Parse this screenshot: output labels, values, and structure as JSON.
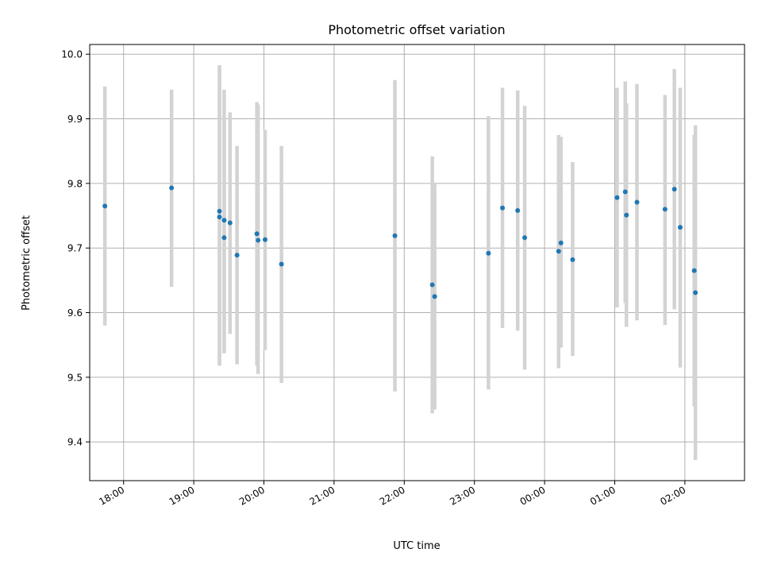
{
  "chart_data": {
    "type": "scatter",
    "title": "Photometric offset variation",
    "xlabel": "UTC time",
    "ylabel": "Photometric offset",
    "grid": true,
    "y_ticks": [
      "9.4",
      "9.5",
      "9.6",
      "9.7",
      "9.8",
      "9.9",
      "10.0"
    ],
    "x_tick_labels": [
      "18:00",
      "19:00",
      "20:00",
      "21:00",
      "22:00",
      "23:00",
      "00:00",
      "01:00",
      "02:00"
    ],
    "x_ticks": [
      "18:00",
      "19:00",
      "20:00",
      "21:00",
      "22:00",
      "23:00",
      "00:00",
      "01:00",
      "02:00"
    ],
    "x_range": [
      "17:31",
      "02:51"
    ],
    "ylim": [
      9.34,
      10.015
    ],
    "colors": {
      "point": "#1f77b4",
      "errorbar": "#d3d3d3",
      "grid": "#b0b0b0"
    },
    "points": [
      {
        "x": "17:44",
        "y": 9.765,
        "ylo": 9.58,
        "yhi": 9.95
      },
      {
        "x": "18:41",
        "y": 9.793,
        "ylo": 9.64,
        "yhi": 9.945
      },
      {
        "x": "19:22",
        "y": 9.757,
        "ylo": 9.518,
        "yhi": 9.983
      },
      {
        "x": "19:22",
        "y": 9.748,
        "ylo": 9.52,
        "yhi": 9.978
      },
      {
        "x": "19:26",
        "y": 9.743,
        "ylo": 9.537,
        "yhi": 9.945
      },
      {
        "x": "19:26",
        "y": 9.716,
        "ylo": 9.538,
        "yhi": 9.9
      },
      {
        "x": "19:31",
        "y": 9.739,
        "ylo": 9.567,
        "yhi": 9.91
      },
      {
        "x": "19:37",
        "y": 9.689,
        "ylo": 9.52,
        "yhi": 9.858
      },
      {
        "x": "19:54",
        "y": 9.722,
        "ylo": 9.518,
        "yhi": 9.926
      },
      {
        "x": "19:55",
        "y": 9.712,
        "ylo": 9.505,
        "yhi": 9.922
      },
      {
        "x": "20:01",
        "y": 9.713,
        "ylo": 9.542,
        "yhi": 9.883
      },
      {
        "x": "20:15",
        "y": 9.675,
        "ylo": 9.491,
        "yhi": 9.858
      },
      {
        "x": "21:52",
        "y": 9.719,
        "ylo": 9.478,
        "yhi": 9.96
      },
      {
        "x": "22:24",
        "y": 9.643,
        "ylo": 9.444,
        "yhi": 9.842
      },
      {
        "x": "22:26",
        "y": 9.625,
        "ylo": 9.45,
        "yhi": 9.8
      },
      {
        "x": "23:12",
        "y": 9.692,
        "ylo": 9.481,
        "yhi": 9.904
      },
      {
        "x": "23:24",
        "y": 9.762,
        "ylo": 9.576,
        "yhi": 9.948
      },
      {
        "x": "23:37",
        "y": 9.758,
        "ylo": 9.572,
        "yhi": 9.944
      },
      {
        "x": "23:43",
        "y": 9.716,
        "ylo": 9.512,
        "yhi": 9.92
      },
      {
        "x": "00:12",
        "y": 9.695,
        "ylo": 9.514,
        "yhi": 9.875
      },
      {
        "x": "00:14",
        "y": 9.708,
        "ylo": 9.546,
        "yhi": 9.872
      },
      {
        "x": "00:24",
        "y": 9.682,
        "ylo": 9.533,
        "yhi": 9.833
      },
      {
        "x": "01:02",
        "y": 9.778,
        "ylo": 9.608,
        "yhi": 9.948
      },
      {
        "x": "01:09",
        "y": 9.787,
        "ylo": 9.615,
        "yhi": 9.958
      },
      {
        "x": "01:10",
        "y": 9.751,
        "ylo": 9.578,
        "yhi": 9.924
      },
      {
        "x": "01:19",
        "y": 9.771,
        "ylo": 9.588,
        "yhi": 9.954
      },
      {
        "x": "01:43",
        "y": 9.76,
        "ylo": 9.581,
        "yhi": 9.937
      },
      {
        "x": "01:51",
        "y": 9.791,
        "ylo": 9.605,
        "yhi": 9.977
      },
      {
        "x": "01:56",
        "y": 9.732,
        "ylo": 9.515,
        "yhi": 9.948
      },
      {
        "x": "02:08",
        "y": 9.665,
        "ylo": 9.455,
        "yhi": 9.875
      },
      {
        "x": "02:09",
        "y": 9.631,
        "ylo": 9.372,
        "yhi": 9.89
      }
    ]
  }
}
